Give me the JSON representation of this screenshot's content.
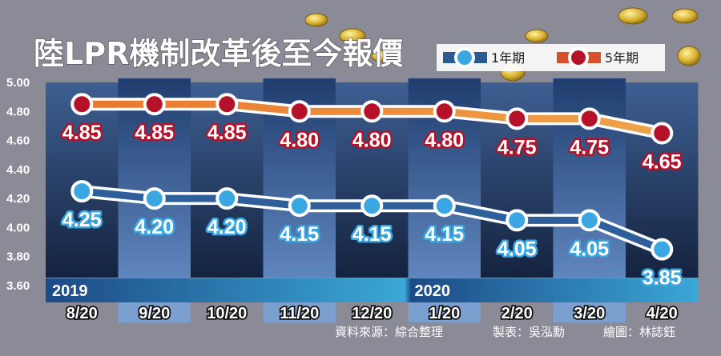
{
  "chart_data": {
    "type": "line",
    "title": "陸LPR機制改革後至今報價",
    "categories": [
      "8/20",
      "9/20",
      "10/20",
      "11/20",
      "12/20",
      "1/20",
      "2/20",
      "3/20",
      "4/20"
    ],
    "year_labels": [
      {
        "label": "2019",
        "category": "8/20"
      },
      {
        "label": "2020",
        "category": "1/20"
      }
    ],
    "series": [
      {
        "name": "1年期",
        "color": "#3aa6e2",
        "values": [
          4.25,
          4.2,
          4.2,
          4.15,
          4.15,
          4.15,
          4.05,
          4.05,
          3.85
        ],
        "labels": [
          "4.25",
          "4.20",
          "4.20",
          "4.15",
          "4.15",
          "4.15",
          "4.05",
          "4.05",
          "3.85"
        ]
      },
      {
        "name": "5年期",
        "color": "#b5122a",
        "values": [
          4.85,
          4.85,
          4.85,
          4.8,
          4.8,
          4.8,
          4.75,
          4.75,
          4.65
        ],
        "labels": [
          "4.85",
          "4.85",
          "4.85",
          "4.80",
          "4.80",
          "4.80",
          "4.75",
          "4.75",
          "4.65"
        ]
      }
    ],
    "ylim": [
      3.6,
      5.0
    ],
    "yticks": [
      "5.00",
      "4.80",
      "4.60",
      "4.40",
      "4.20",
      "4.00",
      "3.80",
      "3.60"
    ],
    "legend_placement": "top-right",
    "grid": false
  },
  "footer": {
    "source": "資料來源：綜合整理",
    "table_by": "製表：吳泓勳",
    "graphic_by": "繪圖：林誌鈺"
  }
}
